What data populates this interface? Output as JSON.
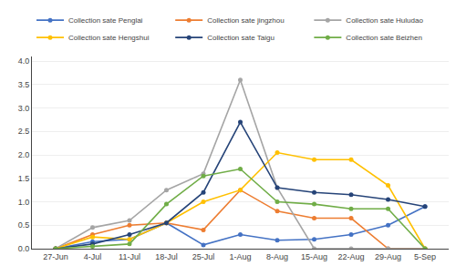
{
  "chart_data": {
    "type": "line",
    "categories": [
      "27-Jun",
      "4-Jul",
      "11-Jul",
      "18-Jul",
      "25-Jul",
      "1-Aug",
      "8-Aug",
      "15-Aug",
      "22-Aug",
      "29-Aug",
      "5-Sep"
    ],
    "series": [
      {
        "name": "Collection sate Penglai",
        "color": "#4472C4",
        "values": [
          0,
          0.15,
          0.2,
          0.55,
          0.08,
          0.3,
          0.18,
          0.2,
          0.3,
          0.5,
          0.9
        ]
      },
      {
        "name": "Collection sate jingzhou",
        "color": "#ED7D31",
        "values": [
          0,
          0.3,
          0.5,
          0.55,
          0.4,
          1.25,
          0.8,
          0.65,
          0.65,
          0.0,
          0.0
        ]
      },
      {
        "name": "Collection sate Huludao",
        "color": "#A5A5A5",
        "values": [
          0,
          0.45,
          0.6,
          1.25,
          1.6,
          3.6,
          1.3,
          0.0,
          0.0,
          0.0,
          0.0
        ]
      },
      {
        "name": "Collection sate Hengshui",
        "color": "#FFC000",
        "values": [
          0,
          0.25,
          0.2,
          0.55,
          1.0,
          1.25,
          2.05,
          1.9,
          1.9,
          1.35,
          0.0
        ]
      },
      {
        "name": "Collection sate Taigu",
        "color": "#264478",
        "values": [
          0,
          0.1,
          0.3,
          0.55,
          1.2,
          2.7,
          1.3,
          1.2,
          1.15,
          1.05,
          0.9
        ]
      },
      {
        "name": "Collection sate Beizhen",
        "color": "#70AD47",
        "values": [
          0,
          0.05,
          0.1,
          0.95,
          1.55,
          1.7,
          1.0,
          0.95,
          0.85,
          0.85,
          0.0
        ]
      }
    ],
    "ylim": [
      0,
      4.1
    ],
    "yticks": [
      {
        "value": 0,
        "label": "0.0"
      },
      0.5,
      {
        "value": 1.0,
        "label": "1.0"
      },
      1.5,
      {
        "value": 2.0,
        "label": "2.0"
      },
      2.5,
      {
        "value": 3.0,
        "label": "3.0"
      },
      3.5,
      {
        "value": 4.0,
        "label": "4.0"
      }
    ],
    "grid": true,
    "legend": "top",
    "marker": "circle"
  }
}
